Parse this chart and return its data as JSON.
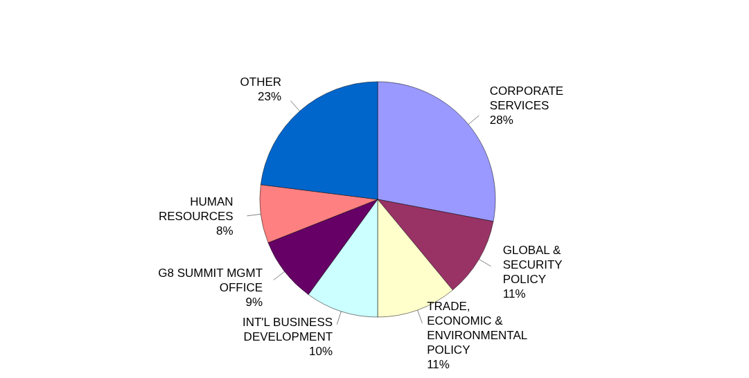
{
  "chart_data": {
    "type": "pie",
    "categories": [
      "CORPORATE SERVICES",
      "GLOBAL & SECURITY POLICY",
      "TRADE, ECONOMIC & ENVIRONMENTAL POLICY",
      "INT'L BUSINESS DEVELOPMENT",
      "G8 SUMMIT MGMT OFFICE",
      "HUMAN RESOURCES",
      "OTHER"
    ],
    "values": [
      28,
      11,
      11,
      10,
      9,
      8,
      23
    ],
    "value_labels": [
      "28%",
      "11%",
      "11%",
      "10%",
      "9%",
      "8%",
      "23%"
    ],
    "colors": [
      "#9999ff",
      "#993366",
      "#ffffcc",
      "#ccffff",
      "#660066",
      "#ff8080",
      "#0066cc"
    ],
    "legend": false
  }
}
